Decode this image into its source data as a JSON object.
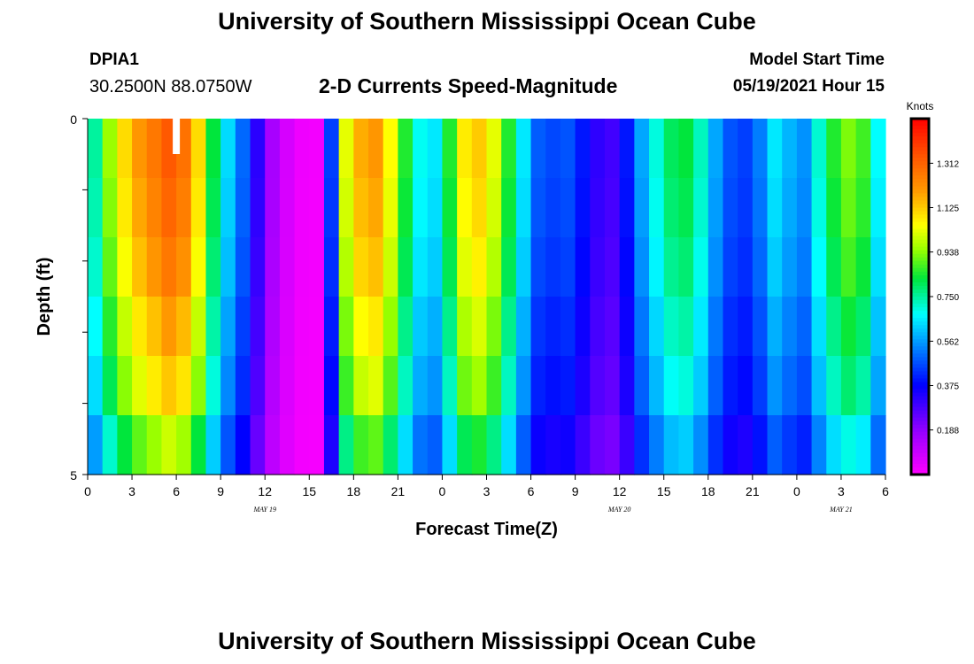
{
  "title_top": "University of Southern Mississippi Ocean Cube",
  "title_bottom": "University of Southern Mississippi Ocean Cube",
  "station": {
    "id": "DPIA1",
    "coords": "30.2500N  88.0750W"
  },
  "plot_title": "2-D Currents Speed-Magnitude",
  "model": {
    "label": "Model Start Time",
    "value": "05/19/2021 Hour 15"
  },
  "chart_data": {
    "type": "heatmap",
    "title": "2-D Currents Speed-Magnitude",
    "xlabel": "Forecast Time(Z)",
    "ylabel": "Depth (ft)",
    "ylim": [
      0,
      5
    ],
    "y_tick_labels": [
      "0",
      "5"
    ],
    "x_tick_labels": [
      "0",
      "3",
      "6",
      "9",
      "12",
      "15",
      "18",
      "21",
      "0",
      "3",
      "6",
      "9",
      "12",
      "15",
      "18",
      "21",
      "0",
      "3",
      "6"
    ],
    "date_labels": [
      {
        "text": "MAY 19",
        "at_tick": 4
      },
      {
        "text": "MAY 20",
        "at_tick": 12
      },
      {
        "text": "MAY 21",
        "at_tick": 17
      }
    ],
    "units": "Knots",
    "colorbar_ticks": [
      "1.312",
      "1.125",
      "0.938",
      "0.750",
      "0.562",
      "0.375",
      "0.188"
    ],
    "colorbar_range": [
      0.0,
      1.5
    ],
    "hours_total": 54,
    "depth_levels": 5,
    "speed_profile": [
      {
        "t": 0,
        "v": 0.65
      },
      {
        "t": 1,
        "v": 0.85
      },
      {
        "t": 2,
        "v": 1.05
      },
      {
        "t": 3.5,
        "v": 1.2
      },
      {
        "t": 5.5,
        "v": 1.33
      },
      {
        "t": 7,
        "v": 1.25
      },
      {
        "t": 8,
        "v": 0.95
      },
      {
        "t": 9,
        "v": 0.7
      },
      {
        "t": 10.5,
        "v": 0.5
      },
      {
        "t": 11.5,
        "v": 0.32
      },
      {
        "t": 12.5,
        "v": 0.15
      },
      {
        "t": 14,
        "v": 0.03
      },
      {
        "t": 15.5,
        "v": 0.02
      },
      {
        "t": 16.5,
        "v": 0.45
      },
      {
        "t": 17,
        "v": 0.9
      },
      {
        "t": 18,
        "v": 1.15
      },
      {
        "t": 19.5,
        "v": 1.2
      },
      {
        "t": 20.5,
        "v": 1.05
      },
      {
        "t": 21.5,
        "v": 0.85
      },
      {
        "t": 23,
        "v": 0.6
      },
      {
        "t": 24,
        "v": 0.7
      },
      {
        "t": 25,
        "v": 1.0
      },
      {
        "t": 26,
        "v": 1.15
      },
      {
        "t": 27,
        "v": 1.1
      },
      {
        "t": 28,
        "v": 0.95
      },
      {
        "t": 29,
        "v": 0.75
      },
      {
        "t": 30,
        "v": 0.55
      },
      {
        "t": 31,
        "v": 0.42
      },
      {
        "t": 32,
        "v": 0.5
      },
      {
        "t": 33,
        "v": 0.45
      },
      {
        "t": 34,
        "v": 0.35
      },
      {
        "t": 35,
        "v": 0.28
      },
      {
        "t": 36,
        "v": 0.3
      },
      {
        "t": 37,
        "v": 0.5
      },
      {
        "t": 38,
        "v": 0.65
      },
      {
        "t": 39,
        "v": 0.75
      },
      {
        "t": 40,
        "v": 0.85
      },
      {
        "t": 41,
        "v": 0.8
      },
      {
        "t": 42,
        "v": 0.65
      },
      {
        "t": 43,
        "v": 0.5
      },
      {
        "t": 44,
        "v": 0.45
      },
      {
        "t": 45,
        "v": 0.45
      },
      {
        "t": 46,
        "v": 0.6
      },
      {
        "t": 47,
        "v": 0.7
      },
      {
        "t": 48,
        "v": 0.48
      },
      {
        "t": 49,
        "v": 0.62
      },
      {
        "t": 50,
        "v": 0.8
      },
      {
        "t": 51,
        "v": 0.9
      },
      {
        "t": 52,
        "v": 0.95
      },
      {
        "t": 53,
        "v": 0.8
      },
      {
        "t": 54,
        "v": 0.55
      }
    ],
    "depth_factors": [
      1.0,
      0.98,
      0.95,
      0.9,
      0.85,
      0.75
    ]
  }
}
